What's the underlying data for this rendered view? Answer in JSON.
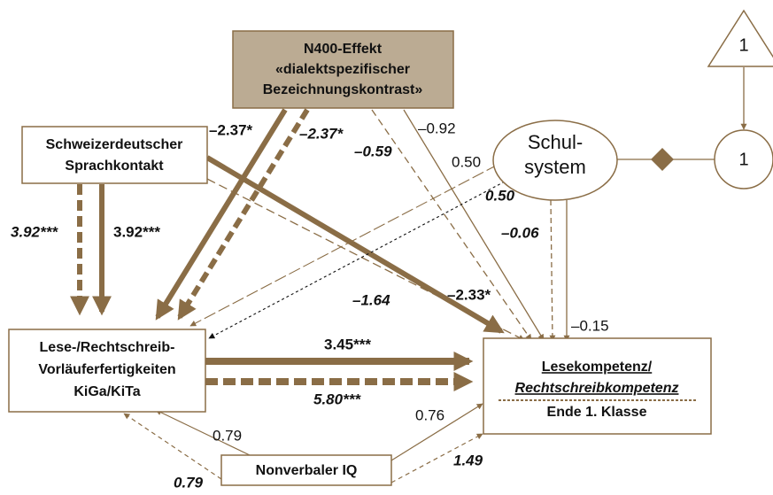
{
  "nodes": {
    "n400": [
      "N400-Effekt",
      "«dialektspezifischer",
      "Bezeichnungskontrast»"
    ],
    "sprachkontakt": [
      "Schweizerdeutscher",
      "Sprachkontakt"
    ],
    "schulsystem": [
      "Schul-",
      "system"
    ],
    "constant": "1",
    "variance": "1",
    "vorlaeufer": [
      "Lese-/Rechtschreib-",
      "Vorläuferfertigkeiten",
      "KiGa/KiTa"
    ],
    "lesekompetenz": [
      "Lesekompetenz/",
      "Rechtschreibkompetenz",
      "Ende 1. Klasse"
    ],
    "iq": "Nonverbaler IQ"
  },
  "paths": {
    "n400_vorl_solid": "–2.37*",
    "n400_vorl_dashed": "–2.37*",
    "n400_lese_solid": "–0.92",
    "n400_lese_dashed": "–0.59",
    "schul_vorl_solid": "0.50",
    "schul_vorl_dashed": "0.50",
    "sprach_vorl_dashed": "3.92***",
    "sprach_vorl_solid": "3.92***",
    "schul_lese_dashed": "–0.06",
    "sprach_lese_dashed": "–1.64",
    "sprach_lese_solid": "–2.33*",
    "schul_lese_solid": "–0.15",
    "vorl_lese_solid": "3.45***",
    "vorl_lese_dashed": "5.80***",
    "iq_vorl_solid": "0.79",
    "iq_lese_solid": "0.76",
    "iq_lese_dashed": "1.49",
    "iq_vorl_dashed": "0.79"
  }
}
